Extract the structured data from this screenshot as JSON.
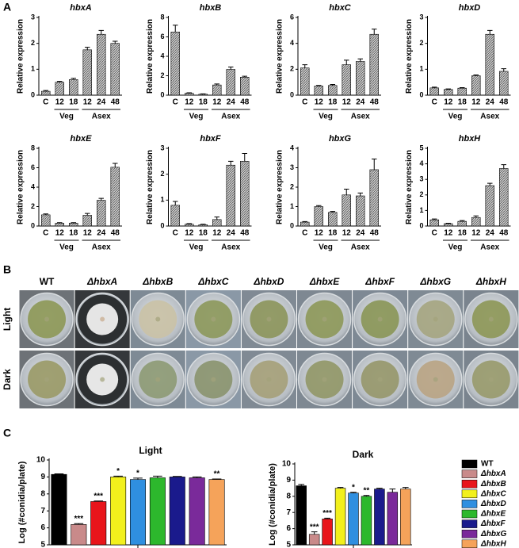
{
  "panel_labels": [
    "A",
    "B",
    "C"
  ],
  "plates": {
    "strains": [
      "WT",
      "ΔhbxA",
      "ΔhbxB",
      "ΔhbxC",
      "ΔhbxD",
      "ΔhbxE",
      "ΔhbxF",
      "ΔhbxG",
      "ΔhbxH"
    ],
    "conditions": [
      "Light",
      "Dark"
    ]
  },
  "conidia_legend": {
    "names": [
      "WT",
      "ΔhbxA",
      "ΔhbxB",
      "ΔhbxC",
      "ΔhbxD",
      "ΔhbxE",
      "ΔhbxF",
      "ΔhbxG",
      "ΔhbxH"
    ],
    "colors": [
      "#000000",
      "#c98a8a",
      "#e8151b",
      "#f2f01c",
      "#2f8fe0",
      "#2db82d",
      "#1a1a8c",
      "#7a2a9a",
      "#f5a35a"
    ]
  },
  "chart_data": [
    {
      "type": "bar",
      "title": "hbxA",
      "ylabel": "Relative expression",
      "categories": [
        "C",
        "12",
        "18",
        "12",
        "24",
        "48"
      ],
      "group_labels": [
        "Veg",
        "Asex"
      ],
      "values": [
        0.15,
        0.5,
        0.6,
        1.75,
        2.35,
        2.0
      ],
      "errors": [
        0.03,
        0.03,
        0.05,
        0.1,
        0.15,
        0.08
      ],
      "ylim": [
        0,
        3
      ],
      "yticks": [
        0,
        1,
        2,
        3
      ]
    },
    {
      "type": "bar",
      "title": "hbxB",
      "ylabel": "Relative expression",
      "categories": [
        "C",
        "12",
        "18",
        "12",
        "24",
        "48"
      ],
      "group_labels": [
        "Veg",
        "Asex"
      ],
      "values": [
        6.5,
        0.2,
        0.1,
        1.05,
        2.65,
        1.85
      ],
      "errors": [
        0.7,
        0.05,
        0.03,
        0.1,
        0.25,
        0.1
      ],
      "ylim": [
        0,
        8
      ],
      "yticks": [
        0,
        2,
        4,
        6,
        8
      ]
    },
    {
      "type": "bar",
      "title": "hbxC",
      "ylabel": "Relative expression",
      "categories": [
        "C",
        "12",
        "18",
        "12",
        "24",
        "48"
      ],
      "group_labels": [
        "Veg",
        "Asex"
      ],
      "values": [
        2.1,
        0.7,
        0.75,
        2.35,
        2.6,
        4.7
      ],
      "errors": [
        0.25,
        0.05,
        0.08,
        0.35,
        0.2,
        0.4
      ],
      "ylim": [
        0,
        6
      ],
      "yticks": [
        0,
        2,
        4,
        6
      ]
    },
    {
      "type": "bar",
      "title": "hbxD",
      "ylabel": "Relative expression",
      "categories": [
        "C",
        "12",
        "18",
        "12",
        "24",
        "48"
      ],
      "group_labels": [
        "Veg",
        "Asex"
      ],
      "values": [
        0.28,
        0.22,
        0.27,
        0.75,
        2.35,
        0.92
      ],
      "errors": [
        0.03,
        0.02,
        0.02,
        0.03,
        0.15,
        0.1
      ],
      "ylim": [
        0,
        3
      ],
      "yticks": [
        0,
        1,
        2,
        3
      ]
    },
    {
      "type": "bar",
      "title": "hbxE",
      "ylabel": "Relative expression",
      "categories": [
        "C",
        "12",
        "18",
        "12",
        "24",
        "48"
      ],
      "group_labels": [
        "Veg",
        "Asex"
      ],
      "values": [
        1.15,
        0.3,
        0.3,
        1.1,
        2.65,
        6.05
      ],
      "errors": [
        0.1,
        0.05,
        0.05,
        0.2,
        0.2,
        0.4
      ],
      "ylim": [
        0,
        8
      ],
      "yticks": [
        0,
        2,
        4,
        6,
        8
      ]
    },
    {
      "type": "bar",
      "title": "hbxF",
      "ylabel": "Relative expression",
      "categories": [
        "C",
        "12",
        "18",
        "12",
        "24",
        "48"
      ],
      "group_labels": [
        "Veg",
        "Asex"
      ],
      "values": [
        0.8,
        0.07,
        0.05,
        0.25,
        2.35,
        2.5
      ],
      "errors": [
        0.15,
        0.02,
        0.02,
        0.1,
        0.15,
        0.3
      ],
      "ylim": [
        0,
        3
      ],
      "yticks": [
        0,
        1,
        2,
        3
      ]
    },
    {
      "type": "bar",
      "title": "hbxG",
      "ylabel": "Relative expression",
      "categories": [
        "C",
        "12",
        "18",
        "12",
        "24",
        "48"
      ],
      "group_labels": [
        "Veg",
        "Asex"
      ],
      "values": [
        0.2,
        1.0,
        0.7,
        1.6,
        1.55,
        2.9
      ],
      "errors": [
        0.03,
        0.05,
        0.05,
        0.3,
        0.15,
        0.55
      ],
      "ylim": [
        0,
        4
      ],
      "yticks": [
        0,
        1,
        2,
        3,
        4
      ]
    },
    {
      "type": "bar",
      "title": "hbxH",
      "ylabel": "Relative expression",
      "categories": [
        "C",
        "12",
        "18",
        "12",
        "24",
        "48"
      ],
      "group_labels": [
        "Veg",
        "Asex"
      ],
      "values": [
        0.4,
        0.15,
        0.3,
        0.55,
        2.6,
        3.7
      ],
      "errors": [
        0.05,
        0.03,
        0.05,
        0.1,
        0.15,
        0.25
      ],
      "ylim": [
        0,
        5
      ],
      "yticks": [
        0,
        1,
        2,
        3,
        4,
        5
      ]
    },
    {
      "type": "bar",
      "title": "Light",
      "ylabel": "Log (#conidia/plate)",
      "values": [
        9.15,
        6.2,
        7.55,
        9.0,
        8.85,
        8.95,
        9.0,
        8.95,
        8.85
      ],
      "errors": [
        0.03,
        0.05,
        0.03,
        0.05,
        0.08,
        0.1,
        0.03,
        0.05,
        0.03
      ],
      "ylim": [
        5,
        10
      ],
      "yticks": [
        5,
        6,
        7,
        8,
        9,
        10
      ],
      "annotations": [
        {
          "index": 1,
          "text": "***"
        },
        {
          "index": 2,
          "text": "***"
        },
        {
          "index": 3,
          "text": "*"
        },
        {
          "index": 4,
          "text": "*"
        },
        {
          "index": 8,
          "text": "**"
        }
      ]
    },
    {
      "type": "bar",
      "title": "Dark",
      "ylabel": "Log (#conidia/plate)",
      "values": [
        8.65,
        5.65,
        6.6,
        8.5,
        8.2,
        8.0,
        8.45,
        8.25,
        8.45
      ],
      "errors": [
        0.08,
        0.15,
        0.05,
        0.05,
        0.05,
        0.05,
        0.05,
        0.2,
        0.1
      ],
      "ylim": [
        5,
        10
      ],
      "yticks": [
        5,
        6,
        7,
        8,
        9,
        10
      ],
      "annotations": [
        {
          "index": 1,
          "text": "***"
        },
        {
          "index": 2,
          "text": "***"
        },
        {
          "index": 4,
          "text": "*"
        },
        {
          "index": 5,
          "text": "**"
        }
      ]
    }
  ]
}
